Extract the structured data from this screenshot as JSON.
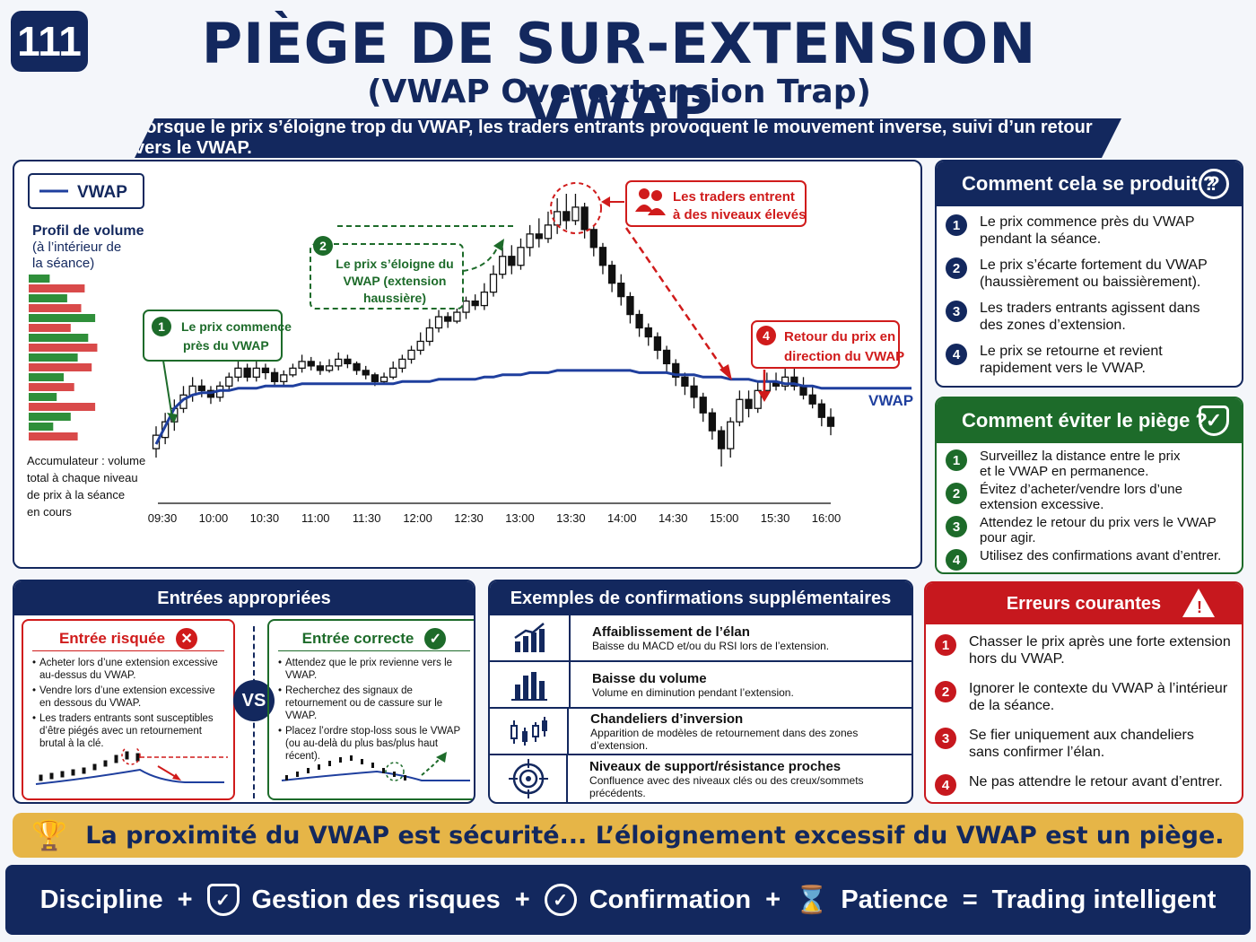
{
  "header": {
    "badge": "111",
    "title": "PIÈGE DE SUR-EXTENSION VWAP",
    "subtitle": "(VWAP Overextension Trap)",
    "banner": "Lorsque le prix s’éloigne trop du VWAP, les traders entrants provoquent le mouvement inverse, suivi d’un retour vers le VWAP."
  },
  "chart": {
    "legend": "VWAP",
    "profile_title": "Profil de volume",
    "profile_sub1": "(à l’intérieur de",
    "profile_sub2": "la séance)",
    "accum1": "Accumulateur : volume",
    "accum2": "total à chaque niveau",
    "accum3": "de prix à la séance",
    "accum4": "en cours",
    "vwap_label": "VWAP",
    "ann1_num": "1",
    "ann1_l1": "Le prix commence",
    "ann1_l2": "près du VWAP",
    "ann2_num": "2",
    "ann2_l1": "Le prix s’éloigne du",
    "ann2_l2": "VWAP (extension",
    "ann2_l3": "haussière)",
    "ann3_l1": "Les traders entrent",
    "ann3_l2": "à des niveaux élevés",
    "ann4_num": "4",
    "ann4_l1": "Retour du prix en",
    "ann4_l2": "direction du VWAP"
  },
  "chart_data": {
    "type": "candlestick",
    "x_ticks": [
      "09:30",
      "10:00",
      "10:30",
      "11:00",
      "11:30",
      "12:00",
      "12:30",
      "13:00",
      "13:30",
      "14:00",
      "14:30",
      "15:00",
      "15:30",
      "16:00"
    ],
    "price": [
      {
        "o": 12,
        "c": 18,
        "h": 22,
        "l": 8
      },
      {
        "o": 17,
        "c": 24,
        "h": 28,
        "l": 14
      },
      {
        "o": 24,
        "c": 30,
        "h": 34,
        "l": 20
      },
      {
        "o": 30,
        "c": 36,
        "h": 40,
        "l": 28
      },
      {
        "o": 36,
        "c": 40,
        "h": 44,
        "l": 33
      },
      {
        "o": 40,
        "c": 38,
        "h": 43,
        "l": 35
      },
      {
        "o": 38,
        "c": 35,
        "h": 40,
        "l": 32
      },
      {
        "o": 35,
        "c": 40,
        "h": 42,
        "l": 33
      },
      {
        "o": 40,
        "c": 44,
        "h": 46,
        "l": 38
      },
      {
        "o": 44,
        "c": 48,
        "h": 52,
        "l": 42
      },
      {
        "o": 48,
        "c": 44,
        "h": 50,
        "l": 42
      },
      {
        "o": 44,
        "c": 48,
        "h": 51,
        "l": 42
      },
      {
        "o": 48,
        "c": 46,
        "h": 50,
        "l": 43
      },
      {
        "o": 46,
        "c": 42,
        "h": 48,
        "l": 40
      },
      {
        "o": 42,
        "c": 45,
        "h": 47,
        "l": 40
      },
      {
        "o": 45,
        "c": 48,
        "h": 50,
        "l": 44
      },
      {
        "o": 48,
        "c": 51,
        "h": 54,
        "l": 46
      },
      {
        "o": 51,
        "c": 49,
        "h": 53,
        "l": 47
      },
      {
        "o": 49,
        "c": 47,
        "h": 51,
        "l": 45
      },
      {
        "o": 47,
        "c": 49,
        "h": 52,
        "l": 46
      },
      {
        "o": 49,
        "c": 52,
        "h": 55,
        "l": 47
      },
      {
        "o": 52,
        "c": 50,
        "h": 54,
        "l": 48
      },
      {
        "o": 50,
        "c": 47,
        "h": 51,
        "l": 45
      },
      {
        "o": 47,
        "c": 45,
        "h": 49,
        "l": 43
      },
      {
        "o": 45,
        "c": 42,
        "h": 46,
        "l": 40
      },
      {
        "o": 42,
        "c": 44,
        "h": 46,
        "l": 41
      },
      {
        "o": 44,
        "c": 48,
        "h": 51,
        "l": 43
      },
      {
        "o": 48,
        "c": 52,
        "h": 54,
        "l": 46
      },
      {
        "o": 52,
        "c": 56,
        "h": 58,
        "l": 50
      },
      {
        "o": 56,
        "c": 60,
        "h": 64,
        "l": 54
      },
      {
        "o": 60,
        "c": 66,
        "h": 70,
        "l": 58
      },
      {
        "o": 66,
        "c": 71,
        "h": 74,
        "l": 64
      },
      {
        "o": 71,
        "c": 69,
        "h": 73,
        "l": 66
      },
      {
        "o": 69,
        "c": 73,
        "h": 76,
        "l": 68
      },
      {
        "o": 73,
        "c": 78,
        "h": 80,
        "l": 70
      },
      {
        "o": 78,
        "c": 76,
        "h": 81,
        "l": 74
      },
      {
        "o": 76,
        "c": 82,
        "h": 86,
        "l": 74
      },
      {
        "o": 82,
        "c": 90,
        "h": 94,
        "l": 80
      },
      {
        "o": 90,
        "c": 98,
        "h": 102,
        "l": 88
      },
      {
        "o": 98,
        "c": 94,
        "h": 103,
        "l": 90
      },
      {
        "o": 94,
        "c": 102,
        "h": 106,
        "l": 92
      },
      {
        "o": 102,
        "c": 108,
        "h": 112,
        "l": 98
      },
      {
        "o": 108,
        "c": 106,
        "h": 115,
        "l": 102
      },
      {
        "o": 106,
        "c": 112,
        "h": 118,
        "l": 104
      },
      {
        "o": 112,
        "c": 118,
        "h": 124,
        "l": 108
      },
      {
        "o": 118,
        "c": 114,
        "h": 126,
        "l": 110
      },
      {
        "o": 114,
        "c": 120,
        "h": 126,
        "l": 112
      },
      {
        "o": 120,
        "c": 110,
        "h": 122,
        "l": 106
      },
      {
        "o": 110,
        "c": 102,
        "h": 112,
        "l": 98
      },
      {
        "o": 102,
        "c": 94,
        "h": 104,
        "l": 90
      },
      {
        "o": 94,
        "c": 86,
        "h": 96,
        "l": 82
      },
      {
        "o": 86,
        "c": 80,
        "h": 90,
        "l": 76
      },
      {
        "o": 80,
        "c": 72,
        "h": 82,
        "l": 68
      },
      {
        "o": 72,
        "c": 66,
        "h": 74,
        "l": 62
      },
      {
        "o": 66,
        "c": 62,
        "h": 68,
        "l": 58
      },
      {
        "o": 62,
        "c": 56,
        "h": 64,
        "l": 52
      },
      {
        "o": 56,
        "c": 50,
        "h": 58,
        "l": 46
      },
      {
        "o": 50,
        "c": 44,
        "h": 52,
        "l": 40
      },
      {
        "o": 44,
        "c": 40,
        "h": 46,
        "l": 36
      },
      {
        "o": 40,
        "c": 35,
        "h": 44,
        "l": 30
      },
      {
        "o": 35,
        "c": 28,
        "h": 37,
        "l": 24
      },
      {
        "o": 28,
        "c": 20,
        "h": 30,
        "l": 16
      },
      {
        "o": 20,
        "c": 12,
        "h": 22,
        "l": 4
      },
      {
        "o": 12,
        "c": 24,
        "h": 26,
        "l": 8
      },
      {
        "o": 24,
        "c": 34,
        "h": 38,
        "l": 22
      },
      {
        "o": 34,
        "c": 30,
        "h": 38,
        "l": 26
      },
      {
        "o": 30,
        "c": 38,
        "h": 42,
        "l": 28
      },
      {
        "o": 38,
        "c": 42,
        "h": 46,
        "l": 36
      },
      {
        "o": 42,
        "c": 40,
        "h": 46,
        "l": 38
      },
      {
        "o": 40,
        "c": 44,
        "h": 48,
        "l": 38
      },
      {
        "o": 44,
        "c": 40,
        "h": 48,
        "l": 38
      },
      {
        "o": 40,
        "c": 36,
        "h": 44,
        "l": 34
      },
      {
        "o": 36,
        "c": 32,
        "h": 40,
        "l": 30
      },
      {
        "o": 32,
        "c": 26,
        "h": 34,
        "l": 22
      },
      {
        "o": 26,
        "c": 22,
        "h": 30,
        "l": 18
      }
    ],
    "vwap": [
      14,
      22,
      30,
      34,
      36,
      37,
      37,
      38,
      38,
      39,
      39,
      39,
      40,
      40,
      40,
      40,
      41,
      41,
      41,
      41,
      41,
      41,
      41,
      41,
      41,
      41,
      41,
      42,
      42,
      42,
      42,
      43,
      43,
      43,
      43,
      43,
      44,
      44,
      45,
      45,
      45,
      46,
      46,
      46,
      47,
      47,
      47,
      47,
      47,
      47,
      47,
      47,
      47,
      46,
      46,
      46,
      46,
      45,
      45,
      45,
      44,
      44,
      44,
      43,
      43,
      43,
      42,
      42,
      42,
      41,
      41,
      40,
      40,
      39,
      39
    ],
    "volume_profile": [
      {
        "color": "green",
        "v": 0.3
      },
      {
        "color": "red",
        "v": 0.8
      },
      {
        "color": "green",
        "v": 0.55
      },
      {
        "color": "red",
        "v": 0.75
      },
      {
        "color": "green",
        "v": 0.95
      },
      {
        "color": "red",
        "v": 0.6
      },
      {
        "color": "green",
        "v": 0.85
      },
      {
        "color": "red",
        "v": 0.98
      },
      {
        "color": "green",
        "v": 0.7
      },
      {
        "color": "red",
        "v": 0.9
      },
      {
        "color": "green",
        "v": 0.5
      },
      {
        "color": "red",
        "v": 0.65
      },
      {
        "color": "green",
        "v": 0.4
      },
      {
        "color": "red",
        "v": 0.95
      },
      {
        "color": "green",
        "v": 0.6
      },
      {
        "color": "green",
        "v": 0.35
      },
      {
        "color": "red",
        "v": 0.7
      }
    ],
    "colors": {
      "vwap": "#1f3f9e",
      "candle": "#111111",
      "green": "#2f8f3a",
      "red": "#d94a4a",
      "annotation_red": "#d01b1b",
      "annotation_green": "#1d6b2a"
    }
  },
  "how": {
    "title": "Comment cela se produit ?",
    "icon": "?",
    "items": [
      {
        "num": "1",
        "l1": "Le prix commence près du VWAP",
        "l2": "pendant la séance."
      },
      {
        "num": "2",
        "l1": "Le prix s’écarte fortement du VWAP",
        "l2": "(haussièrement ou baissièrement)."
      },
      {
        "num": "3",
        "l1": "Les traders entrants agissent dans",
        "l2": "des zones d’extension."
      },
      {
        "num": "4",
        "l1": "Le prix se retourne et revient",
        "l2": "rapidement vers le VWAP."
      }
    ]
  },
  "avoid": {
    "title": "Comment éviter le piège ?",
    "items": [
      {
        "num": "1",
        "l1": "Surveillez la distance entre le prix",
        "l2": "et le VWAP en permanence."
      },
      {
        "num": "2",
        "l1": "Évitez d’acheter/vendre lors d’une",
        "l2": "extension excessive."
      },
      {
        "num": "3",
        "l1": "Attendez le retour du prix vers le VWAP",
        "l2": "pour agir."
      },
      {
        "num": "4",
        "l1": "Utilisez des confirmations avant d’entrer.",
        "l2": ""
      }
    ]
  },
  "entries": {
    "title": "Entrées appropriées",
    "vs": "VS",
    "risky": {
      "title": "Entrée risquée",
      "items": [
        "Acheter lors d’une extension excessive au-dessus du VWAP.",
        "Vendre lors d’une extension excessive en dessous du VWAP.",
        "Les traders entrants sont susceptibles d’être piégés avec un retournement brutal à la clé."
      ]
    },
    "correct": {
      "title": "Entrée correcte",
      "items": [
        "Attendez que le prix revienne vers le VWAP.",
        "Recherchez des signaux de retournement ou de cassure sur le VWAP.",
        "Placez l’ordre stop-loss sous le VWAP (ou au-delà du plus bas/plus haut récent)."
      ]
    }
  },
  "examples": {
    "title": "Exemples de confirmations supplémentaires",
    "items": [
      {
        "icon": "bar-chart-up-icon",
        "title": "Affaiblissement de l’élan",
        "desc": "Baisse du MACD et/ou du RSI lors de l’extension."
      },
      {
        "icon": "volume-bars-icon",
        "title": "Baisse du volume",
        "desc": "Volume en diminution pendant l’extension."
      },
      {
        "icon": "candles-icon",
        "title": "Chandeliers d’inversion",
        "desc": "Apparition de modèles de retournement dans des zones d’extension."
      },
      {
        "icon": "target-icon",
        "title": "Niveaux de support/résistance proches",
        "desc": "Confluence avec des niveaux clés ou des creux/sommets précédents."
      }
    ]
  },
  "errors": {
    "title": "Erreurs courantes",
    "items": [
      {
        "num": "1",
        "l1": "Chasser le prix après une forte extension",
        "l2": "hors du VWAP."
      },
      {
        "num": "2",
        "l1": "Ignorer le contexte du VWAP à l’intérieur",
        "l2": "de la séance."
      },
      {
        "num": "3",
        "l1": "Se fier uniquement aux chandeliers",
        "l2": "sans confirmer l’élan."
      },
      {
        "num": "4",
        "l1": "Ne pas attendre le retour avant d’entrer.",
        "l2": ""
      }
    ]
  },
  "motto": "La proximité du VWAP est sécurité... L’éloignement excessif du VWAP est un piège.",
  "footer": {
    "w1": "Discipline",
    "plus1": "+",
    "w2": "Gestion des risques",
    "plus2": "+",
    "w3": "Confirmation",
    "plus3": "+",
    "w4": "Patience",
    "eq": "=",
    "w5": "Trading intelligent"
  }
}
